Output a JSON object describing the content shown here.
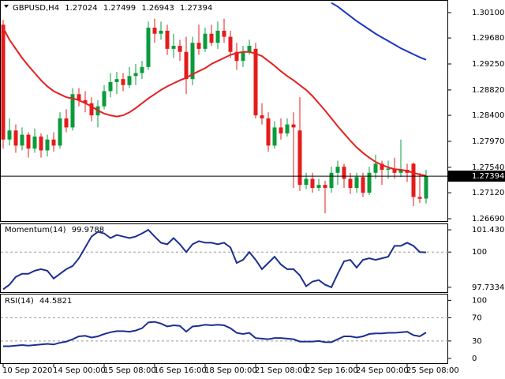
{
  "chart_data": [
    {
      "type": "candlestick",
      "title": "GBPUSD,H4",
      "categories": [
        "10 Sep 2020",
        null,
        null,
        null,
        null,
        null,
        null,
        null,
        "14 Sep 00:00",
        null,
        null,
        null,
        null,
        null,
        null,
        null,
        "15 Sep 08:00",
        null,
        null,
        null,
        null,
        null,
        null,
        null,
        "16 Sep 16:00",
        null,
        null,
        null,
        null,
        null,
        null,
        null,
        "18 Sep 00:00",
        null,
        null,
        null,
        null,
        null,
        null,
        null,
        "21 Sep 08:00",
        null,
        null,
        null,
        null,
        null,
        null,
        null,
        "22 Sep 16:00",
        null,
        null,
        null,
        null,
        null,
        null,
        null,
        "24 Sep 00:00",
        null,
        null,
        null,
        null,
        null,
        null,
        null,
        "25 Sep 08:00",
        null,
        null,
        null
      ],
      "open": [
        1.299,
        1.28,
        1.2815,
        1.279,
        1.2808,
        1.2785,
        1.2805,
        1.2782,
        1.28,
        1.279,
        1.2835,
        1.282,
        1.2875,
        1.2865,
        1.286,
        1.284,
        1.2855,
        1.288,
        1.2895,
        1.29,
        1.289,
        1.2905,
        1.291,
        1.292,
        1.2985,
        1.2975,
        1.298,
        1.295,
        1.2955,
        1.2945,
        1.29,
        1.296,
        1.295,
        1.2975,
        1.296,
        1.298,
        1.297,
        1.2945,
        1.293,
        1.2945,
        1.295,
        1.284,
        1.2835,
        1.279,
        1.282,
        1.281,
        1.2825,
        1.2815,
        1.2725,
        1.2735,
        1.272,
        1.2725,
        1.272,
        1.2745,
        1.2755,
        1.2735,
        1.272,
        1.2738,
        1.2712,
        1.2745,
        1.276,
        1.275,
        1.2752,
        1.2745,
        1.275,
        1.276,
        1.2705,
        1.27024
      ],
      "high": [
        1.2998,
        1.2835,
        1.2825,
        1.282,
        1.2812,
        1.2818,
        1.281,
        1.2808,
        1.2812,
        1.2845,
        1.285,
        1.2885,
        1.2885,
        1.288,
        1.287,
        1.2865,
        1.289,
        1.291,
        1.2912,
        1.291,
        1.292,
        1.2925,
        1.293,
        1.2995,
        1.3,
        1.2995,
        1.299,
        1.2975,
        1.2965,
        1.297,
        1.297,
        1.299,
        1.2985,
        1.299,
        1.2995,
        1.3,
        1.298,
        1.296,
        1.2955,
        1.2965,
        1.296,
        1.286,
        1.2845,
        1.283,
        1.2835,
        1.2835,
        1.2845,
        1.287,
        1.2745,
        1.2745,
        1.2735,
        1.2732,
        1.2755,
        1.2765,
        1.276,
        1.2745,
        1.2745,
        1.2745,
        1.2755,
        1.2775,
        1.2765,
        1.2765,
        1.277,
        1.28,
        1.276,
        1.2762,
        1.2745,
        1.27499
      ],
      "low": [
        1.2785,
        1.279,
        1.2778,
        1.2782,
        1.277,
        1.2778,
        1.277,
        1.2772,
        1.278,
        1.2785,
        1.2812,
        1.2815,
        1.2855,
        1.2845,
        1.283,
        1.282,
        1.285,
        1.287,
        1.2875,
        1.288,
        1.2885,
        1.289,
        1.29,
        1.2915,
        1.296,
        1.2965,
        1.294,
        1.2935,
        1.293,
        1.2875,
        1.289,
        1.294,
        1.2945,
        1.2955,
        1.295,
        1.296,
        1.2935,
        1.2915,
        1.292,
        1.294,
        1.2835,
        1.2825,
        1.278,
        1.2785,
        1.28,
        1.2805,
        1.272,
        1.2715,
        1.2718,
        1.2712,
        1.2715,
        1.2678,
        1.2712,
        1.2725,
        1.272,
        1.271,
        1.2712,
        1.2705,
        1.2708,
        1.2735,
        1.2725,
        1.2735,
        1.2735,
        1.2738,
        1.273,
        1.269,
        1.2695,
        1.26943
      ],
      "close": [
        1.28,
        1.2815,
        1.279,
        1.2808,
        1.2785,
        1.2805,
        1.2782,
        1.28,
        1.279,
        1.2835,
        1.282,
        1.2875,
        1.2865,
        1.286,
        1.284,
        1.2855,
        1.288,
        1.2895,
        1.29,
        1.289,
        1.2905,
        1.291,
        1.292,
        1.2985,
        1.2975,
        1.298,
        1.295,
        1.2955,
        1.2945,
        1.29,
        1.296,
        1.295,
        1.2975,
        1.296,
        1.298,
        1.297,
        1.2945,
        1.293,
        1.2945,
        1.2955,
        1.284,
        1.2835,
        1.279,
        1.282,
        1.281,
        1.2825,
        1.282,
        1.2725,
        1.2735,
        1.272,
        1.2725,
        1.272,
        1.2745,
        1.2755,
        1.2735,
        1.272,
        1.2738,
        1.2712,
        1.2745,
        1.276,
        1.275,
        1.2752,
        1.2745,
        1.275,
        1.2745,
        1.2705,
        1.2702,
        1.27394
      ],
      "up_color": "#0a9b3c",
      "down_color": "#e51b1b",
      "overlays": [
        {
          "color": "#e52020",
          "values": [
            1.2985,
            1.2965,
            1.295,
            1.2935,
            1.2922,
            1.291,
            1.2898,
            1.2888,
            1.288,
            1.2875,
            1.287,
            1.2868,
            1.2865,
            1.286,
            1.2855,
            1.2848,
            1.2843,
            1.284,
            1.2838,
            1.284,
            1.2845,
            1.2852,
            1.286,
            1.2868,
            1.2875,
            1.2882,
            1.2888,
            1.2893,
            1.2898,
            1.2902,
            1.2908,
            1.2913,
            1.2918,
            1.2925,
            1.293,
            1.2935,
            1.294,
            1.2943,
            1.2945,
            1.2945,
            1.2942,
            1.2938,
            1.293,
            1.2922,
            1.2913,
            1.2905,
            1.2898,
            1.289,
            1.2882,
            1.2872,
            1.286,
            1.2848,
            1.2835,
            1.2822,
            1.281,
            1.2798,
            1.2787,
            1.2778,
            1.277,
            1.2763,
            1.2758,
            1.2754,
            1.2751,
            1.275,
            1.2748,
            1.2745,
            1.2742,
            1.274
          ]
        },
        {
          "color": "#1d36c4",
          "values": [
            null,
            null,
            null,
            null,
            null,
            null,
            null,
            null,
            null,
            null,
            null,
            null,
            null,
            null,
            null,
            null,
            null,
            null,
            null,
            null,
            null,
            null,
            null,
            null,
            null,
            null,
            null,
            null,
            null,
            null,
            null,
            null,
            null,
            null,
            null,
            null,
            null,
            null,
            null,
            null,
            null,
            null,
            null,
            null,
            null,
            null,
            null,
            null,
            null,
            null,
            null,
            null,
            1.3026,
            1.302,
            1.3012,
            1.3004,
            1.2996,
            1.2989,
            1.2982,
            1.2975,
            1.2969,
            1.2963,
            1.2957,
            1.2951,
            1.2946,
            1.2941,
            1.2936,
            1.2932
          ]
        }
      ],
      "ylim": [
        1.26638,
        1.30295
      ],
      "yticks": [
        {
          "value": 1.301,
          "label": "1.30100"
        },
        {
          "value": 1.2968,
          "label": "1.29680"
        },
        {
          "value": 1.2925,
          "label": "1.29250"
        },
        {
          "value": 1.2882,
          "label": "1.28820"
        },
        {
          "value": 1.284,
          "label": "1.28400"
        },
        {
          "value": 1.2797,
          "label": "1.27970"
        },
        {
          "value": 1.2754,
          "label": "1.27540"
        },
        {
          "value": 1.2712,
          "label": "1.27120"
        },
        {
          "value": 1.2669,
          "label": "1.26690"
        }
      ]
    },
    {
      "type": "line",
      "title": "Momentum(14)",
      "color": "#1c2f8f",
      "values": [
        97.6,
        97.9,
        98.4,
        98.6,
        98.6,
        98.8,
        98.9,
        98.8,
        98.3,
        98.6,
        98.9,
        99.1,
        99.6,
        100.3,
        101.0,
        101.3,
        101.2,
        100.9,
        101.1,
        101.0,
        100.9,
        101.0,
        101.2,
        101.4303,
        101.0,
        100.6,
        100.5,
        100.9,
        100.5,
        100.0,
        100.5,
        100.7,
        100.6,
        100.6,
        100.5,
        100.6,
        100.3,
        99.3,
        99.5,
        100.0,
        99.5,
        98.9,
        99.3,
        99.7,
        99.2,
        98.9,
        98.9,
        98.5,
        97.8,
        98.1,
        98.2,
        97.9,
        97.7334,
        98.6,
        99.4,
        99.5,
        99.0,
        99.5,
        99.6,
        99.5,
        99.6,
        99.7,
        100.4,
        100.4,
        100.6,
        100.4,
        100.0,
        99.9788
      ],
      "ylim": [
        97.37,
        101.79
      ],
      "yticks": [
        101.4303,
        100,
        97.7334
      ],
      "levels": [
        100
      ]
    },
    {
      "type": "line",
      "title": "RSI(14)",
      "color": "#1c2f8f",
      "values": [
        21,
        21,
        22,
        23,
        22,
        23,
        24,
        25,
        24,
        27,
        29,
        33,
        38,
        39,
        36,
        38,
        42,
        45,
        47,
        47,
        46,
        48,
        52,
        62,
        63,
        60,
        55,
        57,
        56,
        46,
        55,
        56,
        58,
        57,
        58,
        57,
        52,
        44,
        42,
        44,
        35,
        34,
        33,
        35,
        35,
        34,
        33,
        29,
        29,
        29,
        30,
        28,
        28,
        33,
        38,
        38,
        36,
        38,
        42,
        43,
        43,
        44,
        44,
        45,
        46,
        40,
        38,
        44.5821
      ],
      "ylim": [
        -9.6,
        110
      ],
      "yticks": [
        100,
        70,
        30,
        0
      ],
      "levels": [
        70,
        30
      ]
    }
  ]
}
